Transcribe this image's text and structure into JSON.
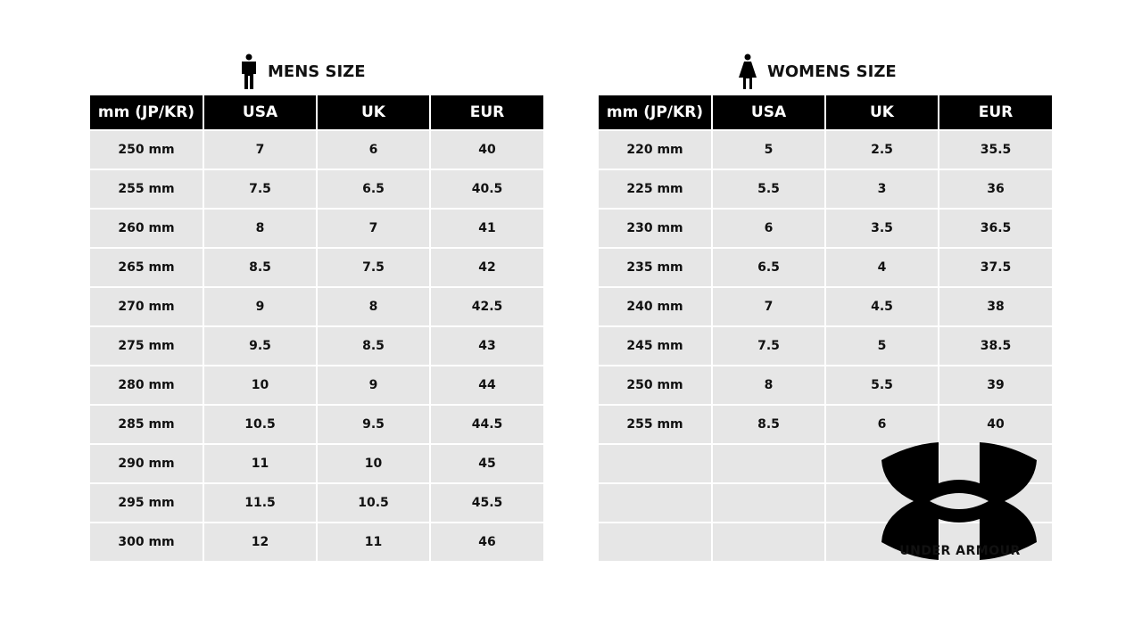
{
  "mens": {
    "title": "MENS SIZE",
    "icon": "man-icon",
    "headers": [
      "mm (JP/KR)",
      "USA",
      "UK",
      "EUR"
    ],
    "rows": [
      [
        "250  mm",
        "7",
        "6",
        "40"
      ],
      [
        "255  mm",
        "7.5",
        "6.5",
        "40.5"
      ],
      [
        "260  mm",
        "8",
        "7",
        "41"
      ],
      [
        "265  mm",
        "8.5",
        "7.5",
        "42"
      ],
      [
        "270  mm",
        "9",
        "8",
        "42.5"
      ],
      [
        "275  mm",
        "9.5",
        "8.5",
        "43"
      ],
      [
        "280  mm",
        "10",
        "9",
        "44"
      ],
      [
        "285  mm",
        "10.5",
        "9.5",
        "44.5"
      ],
      [
        "290  mm",
        "11",
        "10",
        "45"
      ],
      [
        "295  mm",
        "11.5",
        "10.5",
        "45.5"
      ],
      [
        "300  mm",
        "12",
        "11",
        "46"
      ]
    ]
  },
  "womens": {
    "title": "WOMENS SIZE",
    "icon": "woman-icon",
    "headers": [
      "mm (JP/KR)",
      "USA",
      "UK",
      "EUR"
    ],
    "rows": [
      [
        "220  mm",
        "5",
        "2.5",
        "35.5"
      ],
      [
        "225  mm",
        "5.5",
        "3",
        "36"
      ],
      [
        "230  mm",
        "6",
        "3.5",
        "36.5"
      ],
      [
        "235  mm",
        "6.5",
        "4",
        "37.5"
      ],
      [
        "240  mm",
        "7",
        "4.5",
        "38"
      ],
      [
        "245  mm",
        "7.5",
        "5",
        "38.5"
      ],
      [
        "250  mm",
        "8",
        "5.5",
        "39"
      ],
      [
        "255  mm",
        "8.5",
        "6",
        "40"
      ],
      [
        "",
        "",
        "",
        ""
      ],
      [
        "",
        "",
        "",
        ""
      ],
      [
        "",
        "",
        "",
        ""
      ]
    ]
  },
  "brand": {
    "logo_text": "UNDER ARMOUR"
  },
  "colors": {
    "header_bg": "#000000",
    "cell_bg": "#e6e6e6"
  }
}
